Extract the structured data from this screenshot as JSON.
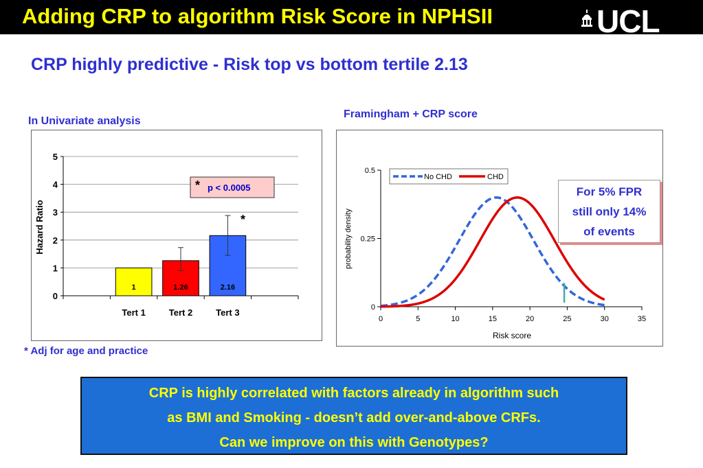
{
  "header": {
    "title": "Adding CRP to algorithm Risk Score in NPHSII",
    "logo_text": "UCL"
  },
  "subtitle": "CRP highly predictive - Risk top vs bottom tertile 2.13",
  "left_label": "In Univariate analysis",
  "right_label": "Framingham + CRP score",
  "footnote": "* Adj for age and practice",
  "colors": {
    "header_bg": "#000000",
    "header_text": "#ffff00",
    "title_blue": "#2f2fd0",
    "box_blue": "#1d6fd6",
    "box_text": "#ffff00"
  },
  "chart_data": [
    {
      "type": "bar",
      "ylabel": "Hazard Ratio",
      "ylim": [
        0,
        5
      ],
      "yticks": [
        "0",
        "1",
        "2",
        "3",
        "4",
        "5"
      ],
      "categories": [
        "Tert 1",
        "Tert 2",
        "Tert 3"
      ],
      "values": [
        1,
        1.26,
        2.16
      ],
      "value_labels": [
        "1",
        "1.26",
        "2.16"
      ],
      "error_bars": [
        null,
        [
          0.9,
          1.73
        ],
        [
          1.45,
          2.88
        ]
      ],
      "bar_colors": [
        "#ffff00",
        "#ff0000",
        "#3366ff"
      ],
      "grid": true,
      "annotations": {
        "pvalue_star": "*",
        "pvalue_text": "p < 0.0005",
        "bar_star": "*"
      }
    },
    {
      "type": "line",
      "xlabel": "Risk score",
      "ylabel": "probability density",
      "xlim": [
        0,
        35
      ],
      "ylim": [
        0,
        0.5
      ],
      "xticks": [
        "0",
        "5",
        "10",
        "15",
        "20",
        "25",
        "30",
        "35"
      ],
      "yticks": [
        "0",
        "0.25",
        "0.5"
      ],
      "series": [
        {
          "name": "No CHD",
          "mean": 15.5,
          "sd": 5.0,
          "peak": 0.4,
          "x_range": [
            0,
            30
          ],
          "color": "#3366dd",
          "dashed": true
        },
        {
          "name": "CHD",
          "mean": 18.3,
          "sd": 5.0,
          "peak": 0.4,
          "x_range": [
            0,
            30
          ],
          "color": "#dd0000",
          "dashed": false
        }
      ],
      "threshold_x": 24.6,
      "threshold_color": "#44aaaa",
      "legend_placement": "top-left",
      "callout_lines": [
        "For 5% FPR",
        "still only 14%",
        "of events"
      ]
    }
  ],
  "conclusion_lines": [
    "CRP is highly correlated with factors already in algorithm such",
    "as BMI and Smoking  - doesn’t add over-and-above CRFs.",
    "Can we improve on this with Genotypes?"
  ]
}
